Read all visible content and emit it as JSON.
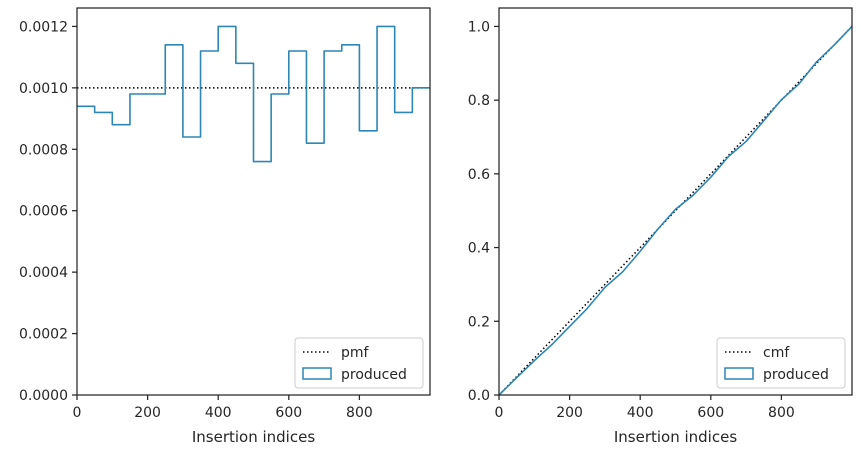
{
  "chart_data": [
    {
      "type": "line",
      "xlabel": "Insertion indices",
      "ylabel": "",
      "xlim": [
        0,
        1000
      ],
      "ylim": [
        0,
        0.00126
      ],
      "xticks": [
        "0",
        "200",
        "400",
        "600",
        "800"
      ],
      "xtick_values": [
        0,
        200,
        400,
        600,
        800
      ],
      "yticks": [
        "0.0000",
        "0.0002",
        "0.0004",
        "0.0006",
        "0.0008",
        "0.0010",
        "0.0012"
      ],
      "ytick_values": [
        0,
        0.0002,
        0.0004,
        0.0006,
        0.0008,
        0.001,
        0.0012
      ],
      "grid": false,
      "legend_position": "bottom-right",
      "legend": [
        "pmf",
        "produced"
      ],
      "series": [
        {
          "name": "pmf",
          "style": "dotted",
          "color": "#000000",
          "x": [
            0,
            1000
          ],
          "y": [
            0.001,
            0.001
          ]
        },
        {
          "name": "produced",
          "style": "step-histogram",
          "color": "#2e86b5",
          "bin_edges": [
            0,
            50,
            100,
            150,
            200,
            250,
            300,
            350,
            400,
            450,
            500,
            550,
            600,
            650,
            700,
            750,
            800,
            850,
            900,
            950,
            1000
          ],
          "values": [
            0.00094,
            0.00092,
            0.00088,
            0.00098,
            0.00098,
            0.00114,
            0.00084,
            0.00112,
            0.0012,
            0.00108,
            0.00076,
            0.00098,
            0.00112,
            0.00082,
            0.00112,
            0.00114,
            0.00086,
            0.0012,
            0.00092,
            0.001
          ]
        }
      ]
    },
    {
      "type": "line",
      "xlabel": "Insertion indices",
      "ylabel": "",
      "xlim": [
        0,
        1000
      ],
      "ylim": [
        0,
        1.05
      ],
      "xticks": [
        "0",
        "200",
        "400",
        "600",
        "800"
      ],
      "xtick_values": [
        0,
        200,
        400,
        600,
        800
      ],
      "yticks": [
        "0.0",
        "0.2",
        "0.4",
        "0.6",
        "0.8",
        "1.0"
      ],
      "ytick_values": [
        0,
        0.2,
        0.4,
        0.6,
        0.8,
        1.0
      ],
      "grid": false,
      "legend_position": "bottom-right",
      "legend": [
        "cmf",
        "produced"
      ],
      "series": [
        {
          "name": "cmf",
          "style": "dotted",
          "color": "#000000",
          "x": [
            0,
            1000
          ],
          "y": [
            0,
            1.0
          ]
        },
        {
          "name": "produced",
          "style": "step",
          "color": "#2e86b5",
          "x": [
            0,
            50,
            100,
            150,
            200,
            250,
            300,
            350,
            400,
            450,
            500,
            550,
            600,
            650,
            700,
            750,
            800,
            850,
            900,
            950,
            1000
          ],
          "y": [
            0,
            0.047,
            0.093,
            0.137,
            0.186,
            0.235,
            0.292,
            0.334,
            0.39,
            0.45,
            0.504,
            0.542,
            0.591,
            0.647,
            0.688,
            0.744,
            0.801,
            0.844,
            0.904,
            0.95,
            1.0
          ]
        }
      ]
    }
  ]
}
